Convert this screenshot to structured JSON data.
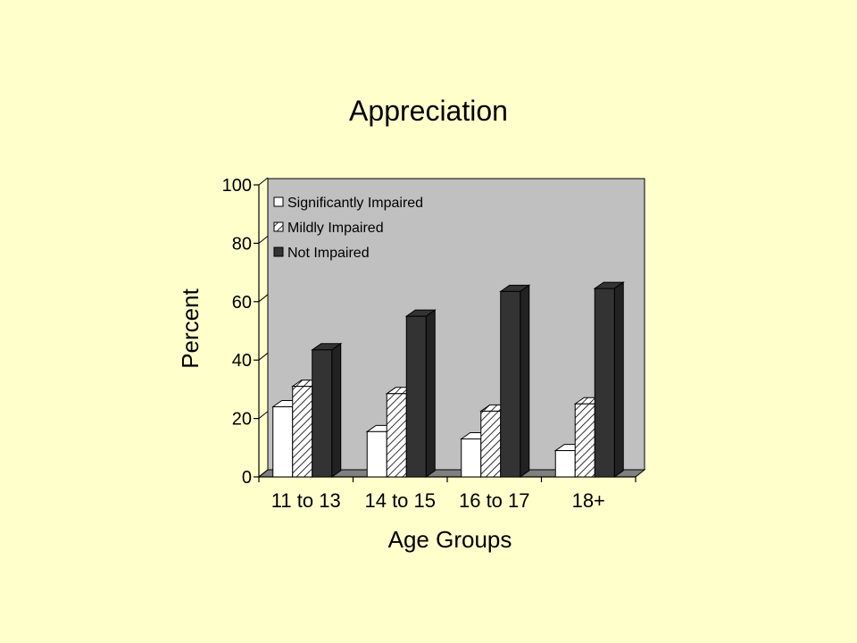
{
  "chart_data": {
    "type": "bar",
    "title": "Appreciation",
    "xlabel": "Age Groups",
    "ylabel": "Percent",
    "ylim": [
      0,
      100
    ],
    "yticks": [
      0,
      20,
      40,
      60,
      80,
      100
    ],
    "categories": [
      "11 to 13",
      "14 to 15",
      "16 to 17",
      "18+"
    ],
    "series": [
      {
        "name": "Significantly Impaired",
        "values": [
          24,
          15.5,
          13,
          9
        ],
        "color": "#FFFFFF",
        "pattern": "solid"
      },
      {
        "name": "Mildly Impaired",
        "values": [
          31,
          28.5,
          22.5,
          25
        ],
        "color": "#FFFFFF",
        "pattern": "diagonal-hatch"
      },
      {
        "name": "Not Impaired",
        "values": [
          43.5,
          55,
          63.5,
          64.5
        ],
        "color": "#333333",
        "pattern": "solid"
      }
    ],
    "legend_position": "top-left-inside",
    "plot_background": "#C0C0C0",
    "grid": false,
    "style": "3d-bars"
  }
}
